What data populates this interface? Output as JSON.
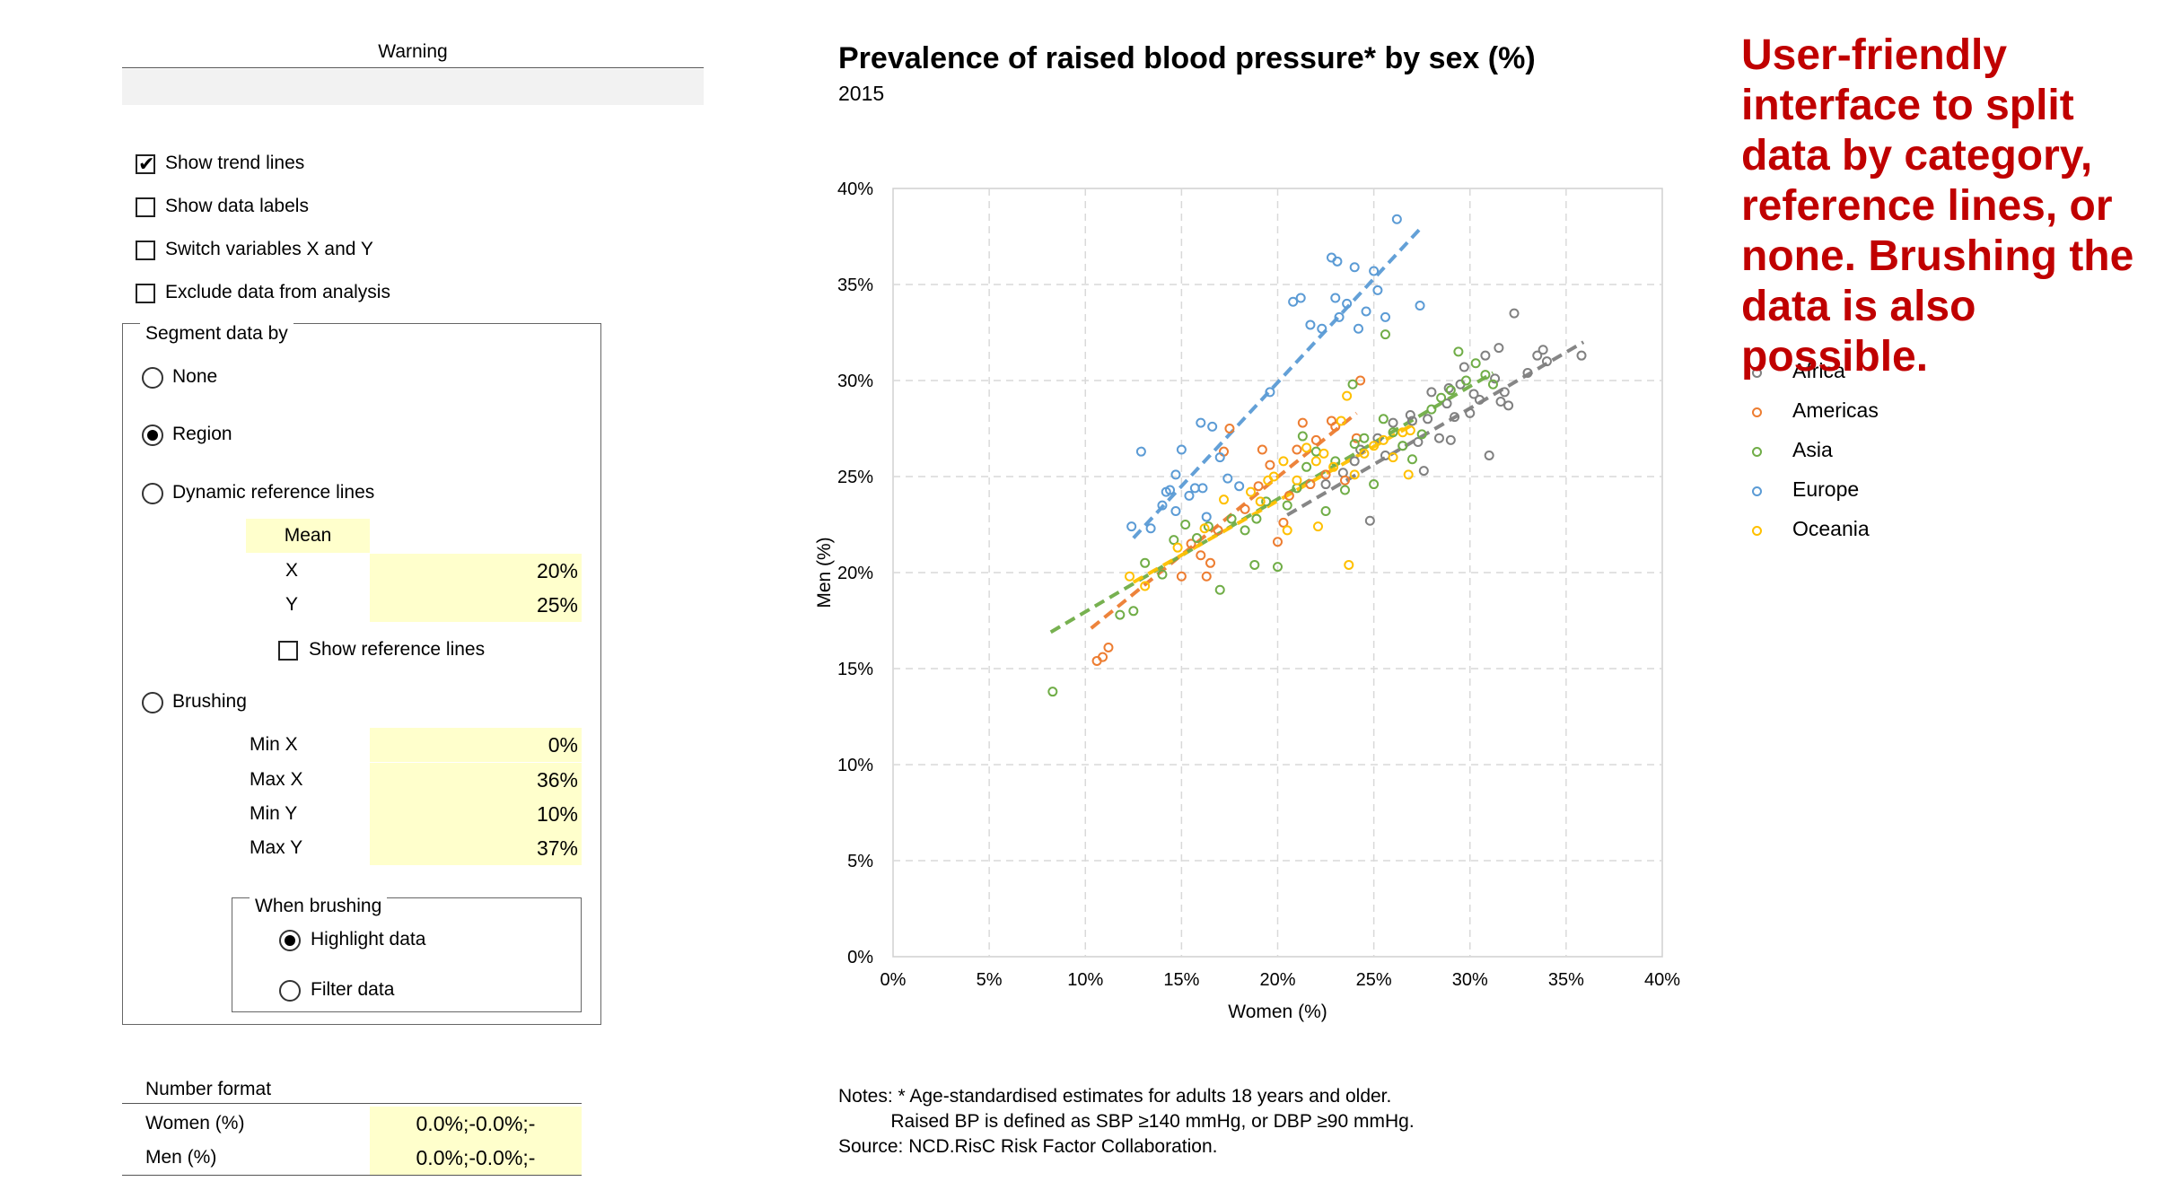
{
  "panel": {
    "warning_label": "Warning",
    "warning_value": "",
    "checkboxes": [
      {
        "label": "Show trend lines",
        "checked": true
      },
      {
        "label": "Show data labels",
        "checked": false
      },
      {
        "label": "Switch variables X and Y",
        "checked": false
      },
      {
        "label": "Exclude data from analysis",
        "checked": false
      }
    ],
    "segment": {
      "title": "Segment data by",
      "options": [
        {
          "label": "None",
          "selected": false
        },
        {
          "label": "Region",
          "selected": true
        },
        {
          "label": "Dynamic reference lines",
          "selected": false
        },
        {
          "label": "Brushing",
          "selected": false
        }
      ],
      "mean": {
        "header": "Mean",
        "x_label": "X",
        "x_value": "20%",
        "y_label": "Y",
        "y_value": "25%"
      },
      "show_reference_lines": {
        "label": "Show reference lines",
        "checked": false
      },
      "brushing": [
        {
          "label": "Min X",
          "value": "0%"
        },
        {
          "label": "Max X",
          "value": "36%"
        },
        {
          "label": "Min Y",
          "value": "10%"
        },
        {
          "label": "Max Y",
          "value": "37%"
        }
      ],
      "when_brushing": {
        "title": "When brushing",
        "options": [
          {
            "label": "Highlight data",
            "selected": true
          },
          {
            "label": "Filter data",
            "selected": false
          }
        ]
      }
    },
    "number_format": {
      "title": "Number format",
      "rows": [
        {
          "label": "Women (%)",
          "value": "0.0%;-0.0%;-"
        },
        {
          "label": "Men (%)",
          "value": "0.0%;-0.0%;-"
        }
      ]
    }
  },
  "promo_text": "User-friendly interface to split data by category, reference lines, or none. Brushing the data is also possible.",
  "chart_data": {
    "type": "scatter",
    "title": "Prevalence of raised blood pressure* by sex (%)",
    "subtitle": "2015",
    "xlabel": "Women (%)",
    "ylabel": "Men (%)",
    "xlim": [
      0,
      40
    ],
    "ylim": [
      0,
      40
    ],
    "xticks": [
      "0%",
      "5%",
      "10%",
      "15%",
      "20%",
      "25%",
      "30%",
      "35%",
      "40%"
    ],
    "yticks": [
      "0%",
      "5%",
      "10%",
      "15%",
      "20%",
      "25%",
      "30%",
      "35%",
      "40%"
    ],
    "grid": true,
    "legend_position": "right",
    "trend_lines": true,
    "series": [
      {
        "name": "Africa",
        "color": "#808080",
        "trend": [
          [
            20.5,
            23.0
          ],
          [
            35.9,
            32.0
          ]
        ],
        "points": [
          [
            22.5,
            24.6
          ],
          [
            23.4,
            25.2
          ],
          [
            24.0,
            25.8
          ],
          [
            24.3,
            26.4
          ],
          [
            24.8,
            22.7
          ],
          [
            25.2,
            27.0
          ],
          [
            25.6,
            26.1
          ],
          [
            26.0,
            27.8
          ],
          [
            26.5,
            26.6
          ],
          [
            27.0,
            27.9
          ],
          [
            27.3,
            26.8
          ],
          [
            27.6,
            25.3
          ],
          [
            27.8,
            28.0
          ],
          [
            28.0,
            29.4
          ],
          [
            28.4,
            27.0
          ],
          [
            28.8,
            28.8
          ],
          [
            29.0,
            26.9
          ],
          [
            29.2,
            28.1
          ],
          [
            29.5,
            29.8
          ],
          [
            29.7,
            30.7
          ],
          [
            30.0,
            28.3
          ],
          [
            30.2,
            29.3
          ],
          [
            30.5,
            29.0
          ],
          [
            30.8,
            31.3
          ],
          [
            31.0,
            26.1
          ],
          [
            31.3,
            30.1
          ],
          [
            31.6,
            28.9
          ],
          [
            31.8,
            29.4
          ],
          [
            32.0,
            28.7
          ],
          [
            32.3,
            33.5
          ],
          [
            33.0,
            30.4
          ],
          [
            33.5,
            31.3
          ],
          [
            33.8,
            31.6
          ],
          [
            34.0,
            31.0
          ],
          [
            35.8,
            31.3
          ],
          [
            31.5,
            31.7
          ],
          [
            28.9,
            29.6
          ],
          [
            26.9,
            28.2
          ]
        ]
      },
      {
        "name": "Americas",
        "color": "#ed7d31",
        "trend": [
          [
            10.3,
            17.1
          ],
          [
            24.1,
            28.3
          ]
        ],
        "points": [
          [
            10.6,
            15.4
          ],
          [
            10.9,
            15.6
          ],
          [
            11.2,
            16.1
          ],
          [
            15.0,
            19.8
          ],
          [
            15.5,
            21.5
          ],
          [
            16.0,
            20.9
          ],
          [
            16.3,
            19.8
          ],
          [
            16.9,
            22.2
          ],
          [
            17.2,
            26.3
          ],
          [
            17.5,
            27.5
          ],
          [
            18.3,
            23.3
          ],
          [
            19.0,
            24.5
          ],
          [
            19.6,
            25.6
          ],
          [
            20.0,
            21.6
          ],
          [
            20.3,
            22.6
          ],
          [
            20.6,
            24.0
          ],
          [
            21.0,
            26.4
          ],
          [
            21.3,
            27.8
          ],
          [
            21.7,
            24.6
          ],
          [
            22.0,
            26.9
          ],
          [
            22.5,
            25.1
          ],
          [
            23.0,
            27.6
          ],
          [
            23.5,
            24.8
          ],
          [
            24.3,
            30.0
          ],
          [
            24.1,
            27.0
          ],
          [
            16.5,
            20.5
          ],
          [
            19.2,
            26.4
          ],
          [
            22.8,
            27.9
          ]
        ]
      },
      {
        "name": "Asia",
        "color": "#70ad47",
        "trend": [
          [
            8.2,
            16.9
          ],
          [
            31.2,
            30.4
          ]
        ],
        "points": [
          [
            8.3,
            13.8
          ],
          [
            11.8,
            17.8
          ],
          [
            12.5,
            18.0
          ],
          [
            13.1,
            20.5
          ],
          [
            14.0,
            19.9
          ],
          [
            14.6,
            21.7
          ],
          [
            15.2,
            22.5
          ],
          [
            15.8,
            21.8
          ],
          [
            16.4,
            22.4
          ],
          [
            17.0,
            19.1
          ],
          [
            17.6,
            22.8
          ],
          [
            18.3,
            22.2
          ],
          [
            18.8,
            20.4
          ],
          [
            19.4,
            23.7
          ],
          [
            20.0,
            20.3
          ],
          [
            20.5,
            23.5
          ],
          [
            21.0,
            24.4
          ],
          [
            21.5,
            25.5
          ],
          [
            22.0,
            26.3
          ],
          [
            22.5,
            23.2
          ],
          [
            23.0,
            25.8
          ],
          [
            23.5,
            24.3
          ],
          [
            24.0,
            26.7
          ],
          [
            24.5,
            27.0
          ],
          [
            25.0,
            24.6
          ],
          [
            25.5,
            28.0
          ],
          [
            26.0,
            27.3
          ],
          [
            26.5,
            26.6
          ],
          [
            27.0,
            25.9
          ],
          [
            27.5,
            27.2
          ],
          [
            28.0,
            28.5
          ],
          [
            28.5,
            29.1
          ],
          [
            29.0,
            29.5
          ],
          [
            29.4,
            31.5
          ],
          [
            29.8,
            30.0
          ],
          [
            30.3,
            30.9
          ],
          [
            30.8,
            30.3
          ],
          [
            31.2,
            29.8
          ],
          [
            23.9,
            29.8
          ],
          [
            25.6,
            32.4
          ],
          [
            21.3,
            27.1
          ],
          [
            18.9,
            22.8
          ]
        ]
      },
      {
        "name": "Europe",
        "color": "#5b9bd5",
        "trend": [
          [
            12.5,
            21.8
          ],
          [
            27.5,
            38.0
          ]
        ],
        "points": [
          [
            12.4,
            22.4
          ],
          [
            12.9,
            26.3
          ],
          [
            13.4,
            22.3
          ],
          [
            14.0,
            23.5
          ],
          [
            14.4,
            24.3
          ],
          [
            14.7,
            25.1
          ],
          [
            15.0,
            26.4
          ],
          [
            15.4,
            24.0
          ],
          [
            15.7,
            24.4
          ],
          [
            16.0,
            27.8
          ],
          [
            16.3,
            22.9
          ],
          [
            16.6,
            27.6
          ],
          [
            17.0,
            26.0
          ],
          [
            17.4,
            24.9
          ],
          [
            18.0,
            24.5
          ],
          [
            19.6,
            29.4
          ],
          [
            20.8,
            34.1
          ],
          [
            21.2,
            34.3
          ],
          [
            21.7,
            32.9
          ],
          [
            22.3,
            32.7
          ],
          [
            22.8,
            36.4
          ],
          [
            23.0,
            34.3
          ],
          [
            23.2,
            33.3
          ],
          [
            23.6,
            34.0
          ],
          [
            24.0,
            35.9
          ],
          [
            24.2,
            32.7
          ],
          [
            24.6,
            33.6
          ],
          [
            25.0,
            35.7
          ],
          [
            25.2,
            34.7
          ],
          [
            25.6,
            33.3
          ],
          [
            26.2,
            38.4
          ],
          [
            27.4,
            33.9
          ],
          [
            14.7,
            23.2
          ],
          [
            14.2,
            24.2
          ],
          [
            16.1,
            24.4
          ],
          [
            23.1,
            36.2
          ]
        ]
      },
      {
        "name": "Oceania",
        "color": "#ffc000",
        "trend": [
          [
            12.5,
            19.5
          ],
          [
            27.2,
            27.8
          ]
        ],
        "points": [
          [
            12.3,
            19.8
          ],
          [
            13.1,
            19.3
          ],
          [
            14.8,
            21.3
          ],
          [
            16.2,
            22.3
          ],
          [
            17.2,
            23.8
          ],
          [
            18.6,
            24.2
          ],
          [
            19.1,
            23.7
          ],
          [
            19.8,
            25.0
          ],
          [
            20.3,
            25.8
          ],
          [
            21.0,
            24.8
          ],
          [
            21.5,
            26.5
          ],
          [
            22.0,
            25.8
          ],
          [
            22.4,
            26.2
          ],
          [
            22.9,
            25.5
          ],
          [
            23.3,
            27.9
          ],
          [
            23.7,
            20.4
          ],
          [
            24.0,
            25.1
          ],
          [
            24.5,
            26.2
          ],
          [
            25.0,
            26.6
          ],
          [
            25.5,
            26.9
          ],
          [
            26.0,
            26.0
          ],
          [
            26.5,
            27.3
          ],
          [
            26.9,
            27.4
          ],
          [
            23.6,
            29.2
          ],
          [
            20.5,
            22.2
          ],
          [
            19.5,
            24.8
          ],
          [
            22.1,
            22.4
          ],
          [
            26.8,
            25.1
          ]
        ]
      }
    ]
  },
  "notes": {
    "line1": "Notes: * Age-standardised estimates for adults 18 years and older.",
    "line2": "          Raised BP is defined as SBP ≥140 mmHg, or DBP ≥90 mmHg.",
    "line3": "Source: NCD.RisC Risk Factor Collaboration."
  }
}
